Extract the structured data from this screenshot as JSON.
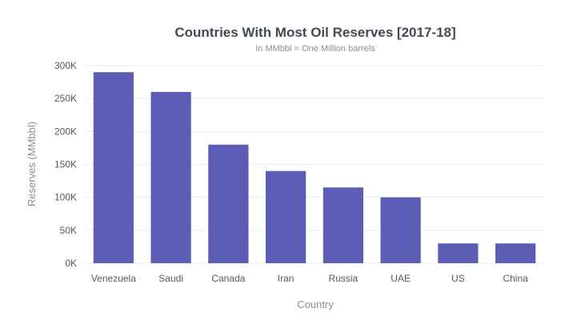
{
  "chart_data": {
    "type": "bar",
    "title": "Countries With Most Oil Reserves [2017-18]",
    "subtitle": "In MMbbl = One Million barrels",
    "xlabel": "Country",
    "ylabel": "Reserves (MMbbl)",
    "categories": [
      "Venezuela",
      "Saudi",
      "Canada",
      "Iran",
      "Russia",
      "UAE",
      "US",
      "China"
    ],
    "values": [
      290000,
      260000,
      180000,
      140000,
      115000,
      100000,
      30000,
      30000
    ],
    "ylim": [
      0,
      300000
    ],
    "yticks": [
      0,
      50000,
      100000,
      150000,
      200000,
      250000,
      300000
    ],
    "ytick_labels": [
      "0K",
      "50K",
      "100K",
      "150K",
      "200K",
      "250K",
      "300K"
    ],
    "grid": true,
    "legend": "none",
    "bar_color": "#5b5eb4"
  }
}
